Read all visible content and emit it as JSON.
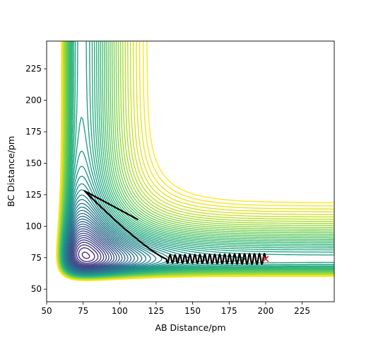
{
  "chart_data": {
    "type": "contour",
    "title": "",
    "xlabel": "AB Distance/pm",
    "ylabel": "BC Distance/pm",
    "xlim": [
      50,
      247
    ],
    "ylim": [
      40,
      247
    ],
    "xticks": [
      "50",
      "75",
      "100",
      "125",
      "150",
      "175",
      "200",
      "225"
    ],
    "yticks": [
      "50",
      "75",
      "100",
      "125",
      "150",
      "175",
      "200",
      "225"
    ],
    "colormap": "viridis",
    "contour_levels": 60,
    "surface": {
      "description": "LEPS-like potential energy surface for A + BC",
      "equilibrium_distance": 74,
      "well_floor_contour": {
        "x_min": 89,
        "x_max": 95,
        "y_min": 139,
        "top": 247
      }
    },
    "trajectory": {
      "color": "#000000",
      "start_x": 200,
      "start_y": 74,
      "end_x": 113,
      "end_y": 105,
      "turning_point_x": 76,
      "turning_point_y": 128
    },
    "start_marker": {
      "symbol": "x",
      "color": "#d62728",
      "x": 200,
      "y": 74
    },
    "grid": false,
    "legend": "none"
  }
}
